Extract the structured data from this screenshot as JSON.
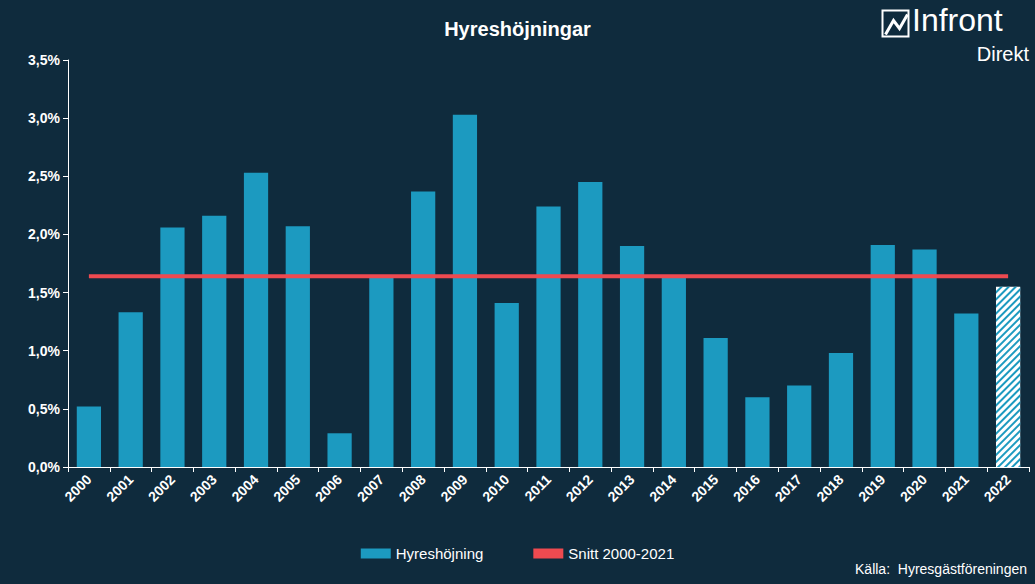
{
  "chart_data": {
    "type": "bar",
    "title": "Hyreshöjningar",
    "categories": [
      "2000",
      "2001",
      "2002",
      "2003",
      "2004",
      "2005",
      "2006",
      "2007",
      "2008",
      "2009",
      "2010",
      "2011",
      "2012",
      "2013",
      "2014",
      "2015",
      "2016",
      "2017",
      "2018",
      "2019",
      "2020",
      "2021",
      "2022"
    ],
    "series": [
      {
        "name": "Hyreshöjning",
        "type": "bar",
        "color": "#1c9ac0",
        "values": [
          0.52,
          1.33,
          2.06,
          2.16,
          2.53,
          2.07,
          0.29,
          1.63,
          2.37,
          3.03,
          1.41,
          2.24,
          2.45,
          1.9,
          1.63,
          1.11,
          0.6,
          0.7,
          0.98,
          1.91,
          1.87,
          1.32,
          1.55
        ]
      },
      {
        "name": "Snitt 2000-2021",
        "type": "line",
        "color": "#ee4a50",
        "values": [
          1.64,
          1.64,
          1.64,
          1.64,
          1.64,
          1.64,
          1.64,
          1.64,
          1.64,
          1.64,
          1.64,
          1.64,
          1.64,
          1.64,
          1.64,
          1.64,
          1.64,
          1.64,
          1.64,
          1.64,
          1.64,
          1.64,
          1.64
        ]
      }
    ],
    "ylim": [
      0,
      3.5
    ],
    "yticks": [
      {
        "value": 0,
        "label": "0,0%"
      },
      {
        "value": 0.5,
        "label": "0,5%"
      },
      {
        "value": 1,
        "label": "1,0%"
      },
      {
        "value": 1.5,
        "label": "1,5%"
      },
      {
        "value": 2,
        "label": "2,0%"
      },
      {
        "value": 2.5,
        "label": "2,5%"
      },
      {
        "value": 3,
        "label": "3,0%"
      },
      {
        "value": 3.5,
        "label": "3,5%"
      }
    ],
    "grid": false,
    "legend": "bottom",
    "annotations": [
      "Infront",
      "Direkt",
      "Källa:  Hyresgästföreningen"
    ]
  }
}
